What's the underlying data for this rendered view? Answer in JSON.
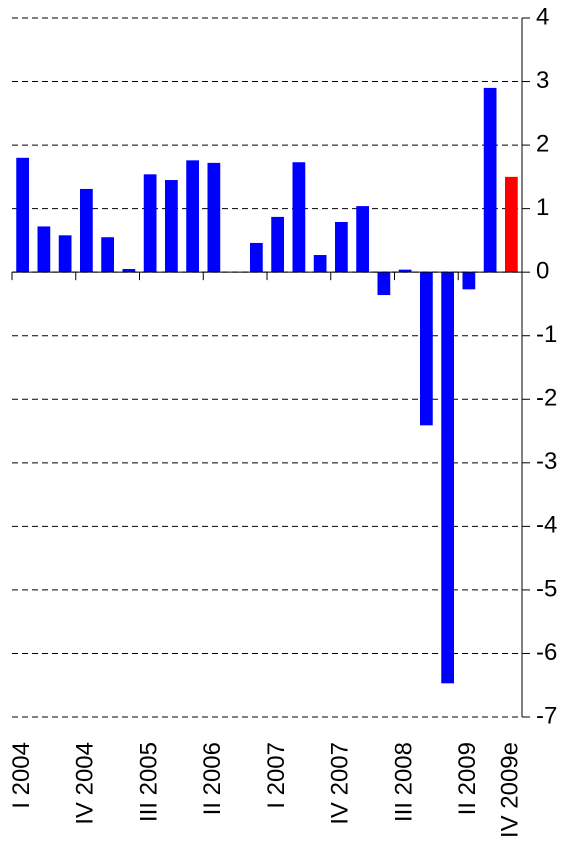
{
  "chart_data": {
    "type": "bar",
    "categories": [
      "I 2004",
      null,
      null,
      "IV 2004",
      null,
      null,
      "III 2005",
      null,
      null,
      "II 2006",
      null,
      null,
      "I 2007",
      null,
      null,
      "IV 2007",
      null,
      null,
      "III 2008",
      null,
      null,
      "II 2009",
      null,
      "IV 2009e"
    ],
    "values": [
      1.8,
      0.72,
      0.58,
      1.31,
      0.55,
      0.05,
      1.54,
      1.45,
      1.76,
      1.72,
      0,
      0.46,
      0.87,
      1.73,
      0.27,
      0.79,
      1.04,
      -0.36,
      0.04,
      -2.41,
      -6.47,
      -0.27,
      2.9,
      1.5
    ],
    "colors": [
      "#0000ff",
      "#0000ff",
      "#0000ff",
      "#0000ff",
      "#0000ff",
      "#0000ff",
      "#0000ff",
      "#0000ff",
      "#0000ff",
      "#0000ff",
      "#0000ff",
      "#0000ff",
      "#0000ff",
      "#0000ff",
      "#0000ff",
      "#0000ff",
      "#0000ff",
      "#0000ff",
      "#0000ff",
      "#0000ff",
      "#0000ff",
      "#0000ff",
      "#0000ff",
      "#ff0000"
    ],
    "ylim": [
      -7,
      4
    ],
    "yticks": [
      4,
      3,
      2,
      1,
      0,
      -1,
      -2,
      -3,
      -4,
      -5,
      -6,
      -7
    ],
    "grid": true
  }
}
